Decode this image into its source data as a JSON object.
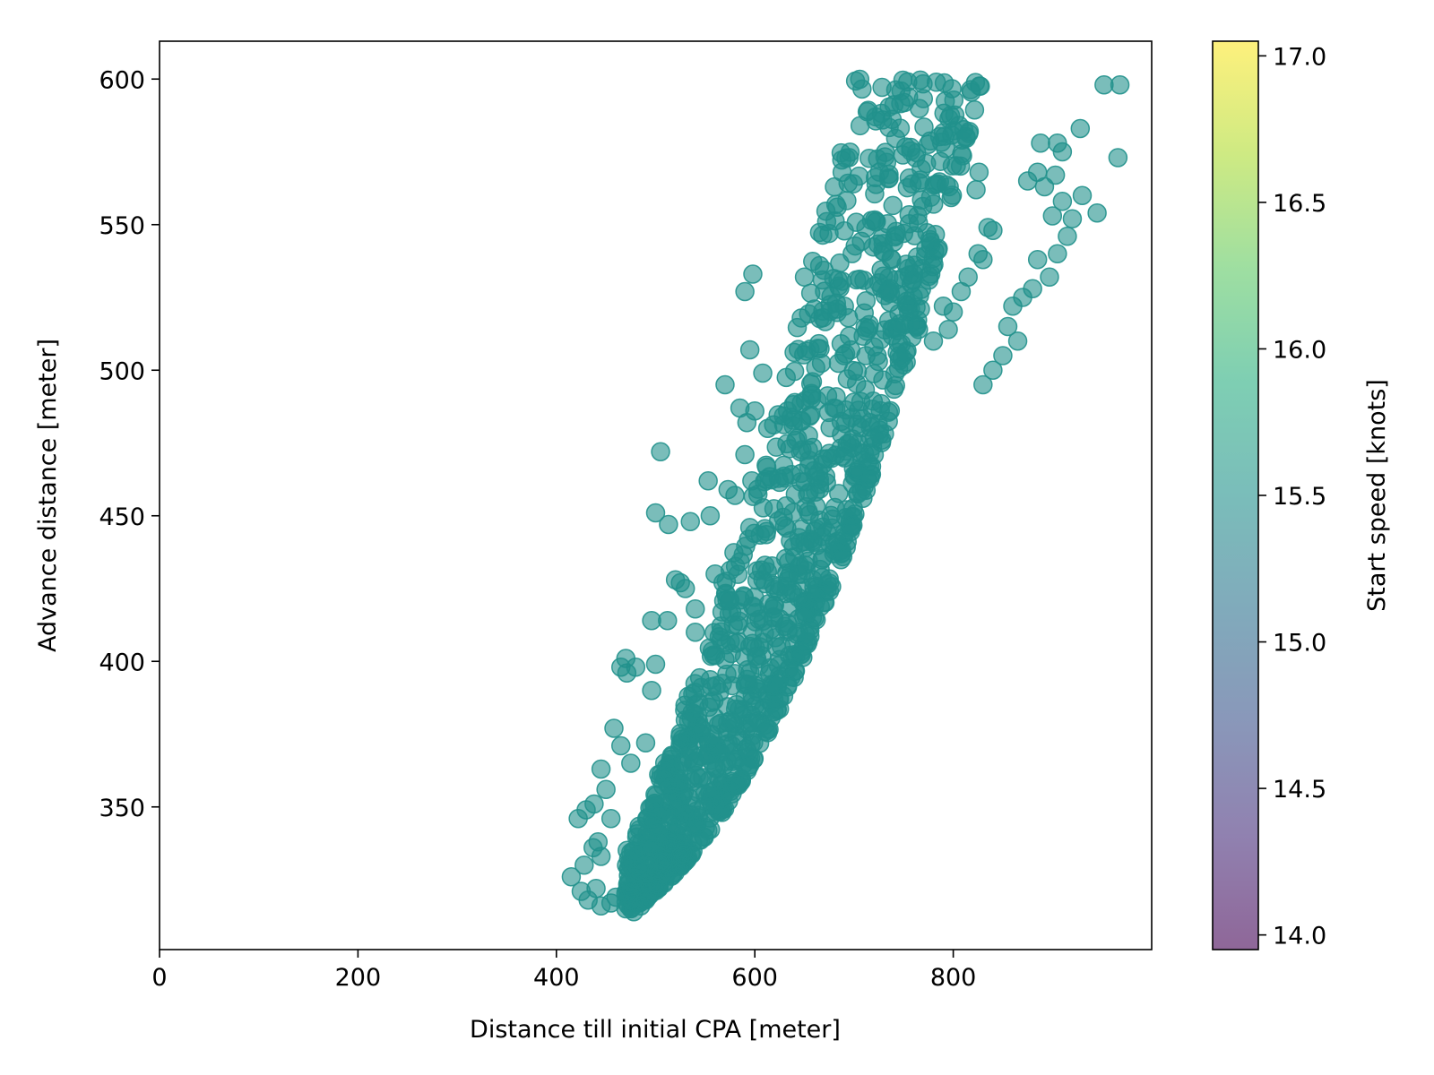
{
  "chart_data": {
    "type": "scatter",
    "xlabel": "Distance till initial CPA [meter]",
    "ylabel": "Advance distance [meter]",
    "xlim": [
      0,
      1000
    ],
    "ylim": [
      301,
      613
    ],
    "xticks": [
      "0",
      "200",
      "400",
      "600",
      "800"
    ],
    "yticks": [
      "350",
      "400",
      "450",
      "500",
      "550",
      "600"
    ],
    "grid": false,
    "marker_color": "#21918c",
    "marker_alpha": 0.6,
    "colorbar": {
      "label": "Start speed [knots]",
      "range": [
        13.95,
        17.05
      ],
      "ticks": [
        "14.0",
        "14.5",
        "15.0",
        "15.5",
        "16.0",
        "16.5",
        "17.0"
      ],
      "colormap": "viridis"
    },
    "series": [
      {
        "values": [
          [
            952,
            598
          ],
          [
            968,
            598
          ],
          [
            966,
            573
          ],
          [
            928,
            583
          ],
          [
            905,
            578
          ],
          [
            888,
            578
          ],
          [
            910,
            575
          ],
          [
            875,
            565
          ],
          [
            885,
            568
          ],
          [
            892,
            563
          ],
          [
            903,
            567
          ],
          [
            910,
            558
          ],
          [
            930,
            560
          ],
          [
            945,
            554
          ],
          [
            920,
            552
          ],
          [
            900,
            553
          ],
          [
            915,
            546
          ],
          [
            905,
            540
          ],
          [
            885,
            538
          ],
          [
            897,
            532
          ],
          [
            880,
            528
          ],
          [
            870,
            525
          ],
          [
            860,
            522
          ],
          [
            855,
            515
          ],
          [
            865,
            510
          ],
          [
            850,
            505
          ],
          [
            840,
            500
          ],
          [
            830,
            495
          ],
          [
            826,
            568
          ],
          [
            823,
            562
          ],
          [
            835,
            549
          ],
          [
            840,
            548
          ],
          [
            825,
            540
          ],
          [
            830,
            538
          ],
          [
            815,
            532
          ],
          [
            808,
            527
          ],
          [
            800,
            520
          ],
          [
            790,
            522
          ],
          [
            795,
            514
          ],
          [
            780,
            510
          ],
          [
            688,
            568
          ],
          [
            683,
            556
          ],
          [
            598,
            533
          ],
          [
            590,
            527
          ],
          [
            650,
            532
          ],
          [
            668,
            531
          ],
          [
            750,
            547
          ],
          [
            740,
            544
          ],
          [
            738,
            538
          ],
          [
            742,
            531
          ],
          [
            745,
            526
          ],
          [
            725,
            530
          ],
          [
            735,
            517
          ],
          [
            755,
            520
          ],
          [
            765,
            514
          ],
          [
            720,
            508
          ],
          [
            712,
            505
          ],
          [
            690,
            505
          ],
          [
            595,
            507
          ],
          [
            608,
            499
          ],
          [
            570,
            495
          ],
          [
            585,
            487
          ],
          [
            592,
            482
          ],
          [
            600,
            486
          ],
          [
            613,
            480
          ],
          [
            633,
            486
          ],
          [
            657,
            492
          ],
          [
            680,
            487
          ],
          [
            700,
            489
          ],
          [
            716,
            482
          ],
          [
            728,
            476
          ],
          [
            505,
            472
          ],
          [
            590,
            471
          ],
          [
            597,
            462
          ],
          [
            553,
            462
          ],
          [
            573,
            459
          ],
          [
            580,
            457
          ],
          [
            500,
            451
          ],
          [
            513,
            447
          ],
          [
            555,
            450
          ],
          [
            535,
            448
          ],
          [
            525,
            427
          ],
          [
            520,
            428
          ],
          [
            530,
            425
          ],
          [
            560,
            430
          ],
          [
            568,
            427
          ],
          [
            540,
            418
          ],
          [
            575,
            421
          ],
          [
            496,
            414
          ],
          [
            512,
            414
          ],
          [
            540,
            410
          ],
          [
            470,
            401
          ],
          [
            480,
            398
          ],
          [
            500,
            399
          ],
          [
            465,
            398
          ],
          [
            496,
            390
          ],
          [
            471,
            396
          ],
          [
            458,
            377
          ],
          [
            465,
            371
          ],
          [
            490,
            372
          ],
          [
            475,
            365
          ],
          [
            445,
            363
          ],
          [
            450,
            356
          ],
          [
            438,
            351
          ],
          [
            455,
            346
          ],
          [
            430,
            349
          ],
          [
            422,
            346
          ],
          [
            442,
            338
          ],
          [
            437,
            336
          ],
          [
            428,
            330
          ],
          [
            445,
            333
          ],
          [
            415,
            326
          ],
          [
            425,
            321
          ],
          [
            432,
            318
          ],
          [
            440,
            322
          ],
          [
            445,
            316
          ],
          [
            455,
            317
          ],
          [
            460,
            319
          ],
          [
            470,
            315
          ],
          [
            478,
            314
          ],
          [
            485,
            316
          ],
          [
            490,
            318
          ]
        ]
      }
    ]
  }
}
